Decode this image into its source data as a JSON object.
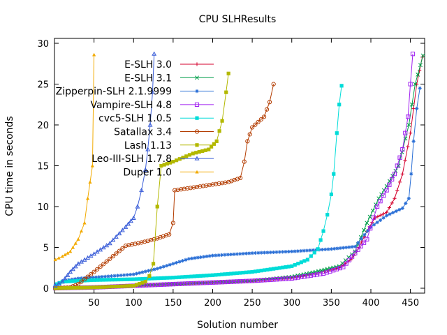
{
  "chart_data": {
    "type": "line",
    "title": "CPU SLHResults",
    "xlabel": "Solution number",
    "ylabel": "CPU time in seconds",
    "xlim": [
      0,
      468
    ],
    "ylim": [
      -0.6,
      30.6
    ],
    "x_ticks": [
      50,
      100,
      150,
      200,
      250,
      300,
      350,
      400,
      450
    ],
    "y_ticks": [
      0,
      5,
      10,
      15,
      20,
      25,
      30
    ],
    "grid": false,
    "legend_position": "top-left",
    "series": [
      {
        "name": "E-SLH 3.0",
        "color": "#d4002c",
        "marker": "plus",
        "points": [
          [
            1,
            0
          ],
          [
            50,
            0.1
          ],
          [
            100,
            0.3
          ],
          [
            150,
            0.5
          ],
          [
            200,
            0.7
          ],
          [
            250,
            0.9
          ],
          [
            300,
            1.3
          ],
          [
            330,
            1.8
          ],
          [
            360,
            2.5
          ],
          [
            375,
            3.5
          ],
          [
            385,
            5
          ],
          [
            395,
            7
          ],
          [
            405,
            8.6
          ],
          [
            420,
            9.3
          ],
          [
            430,
            11
          ],
          [
            440,
            14
          ],
          [
            450,
            19
          ],
          [
            458,
            25
          ],
          [
            465,
            28.3
          ]
        ]
      },
      {
        "name": "E-SLH 3.1",
        "color": "#009e49",
        "marker": "x",
        "points": [
          [
            1,
            0
          ],
          [
            50,
            0.1
          ],
          [
            100,
            0.3
          ],
          [
            150,
            0.5
          ],
          [
            200,
            0.7
          ],
          [
            250,
            0.9
          ],
          [
            300,
            1.4
          ],
          [
            330,
            2
          ],
          [
            360,
            2.7
          ],
          [
            380,
            4.5
          ],
          [
            395,
            8
          ],
          [
            410,
            11
          ],
          [
            420,
            12.5
          ],
          [
            435,
            15
          ],
          [
            448,
            20
          ],
          [
            456,
            25
          ],
          [
            466,
            28.5
          ]
        ]
      },
      {
        "name": "Zipperpin-SLH 2.1.9999",
        "color": "#2a6fd6",
        "marker": "star",
        "points": [
          [
            1,
            0.4
          ],
          [
            10,
            0.9
          ],
          [
            30,
            1.2
          ],
          [
            60,
            1.4
          ],
          [
            100,
            1.7
          ],
          [
            130,
            2.4
          ],
          [
            150,
            3
          ],
          [
            170,
            3.6
          ],
          [
            200,
            4
          ],
          [
            250,
            4.3
          ],
          [
            300,
            4.5
          ],
          [
            350,
            4.8
          ],
          [
            380,
            5.1
          ],
          [
            400,
            7.5
          ],
          [
            420,
            8.9
          ],
          [
            440,
            9.8
          ],
          [
            448,
            11
          ],
          [
            451,
            14
          ],
          [
            454,
            18
          ],
          [
            458,
            22
          ],
          [
            462,
            24.5
          ]
        ]
      },
      {
        "name": "Vampire-SLH 4.8",
        "color": "#a020f0",
        "marker": "square",
        "points": [
          [
            1,
            0
          ],
          [
            50,
            0.1
          ],
          [
            100,
            0.3
          ],
          [
            150,
            0.5
          ],
          [
            200,
            0.7
          ],
          [
            250,
            0.9
          ],
          [
            300,
            1.2
          ],
          [
            340,
            1.8
          ],
          [
            365,
            2.6
          ],
          [
            380,
            4.3
          ],
          [
            395,
            6
          ],
          [
            408,
            10
          ],
          [
            420,
            12
          ],
          [
            430,
            14
          ],
          [
            440,
            17
          ],
          [
            447,
            21
          ],
          [
            450,
            25
          ],
          [
            453,
            28.7
          ]
        ]
      },
      {
        "name": "cvc5-SLH 1.0.5",
        "color": "#00dcd8",
        "marker": "filled-square",
        "points": [
          [
            1,
            0.1
          ],
          [
            3,
            0.5
          ],
          [
            10,
            0.8
          ],
          [
            50,
            1.0
          ],
          [
            100,
            1.1
          ],
          [
            150,
            1.3
          ],
          [
            200,
            1.6
          ],
          [
            250,
            2
          ],
          [
            300,
            2.7
          ],
          [
            320,
            3.5
          ],
          [
            333,
            4.8
          ],
          [
            340,
            7
          ],
          [
            345,
            9
          ],
          [
            350,
            11.5
          ],
          [
            353,
            14
          ],
          [
            357,
            19
          ],
          [
            360,
            22.5
          ],
          [
            363,
            24.8
          ]
        ]
      },
      {
        "name": "Satallax 3.4",
        "color": "#b33c00",
        "marker": "circle",
        "points": [
          [
            1,
            0
          ],
          [
            20,
            0.1
          ],
          [
            30,
            0.5
          ],
          [
            50,
            2
          ],
          [
            70,
            3.6
          ],
          [
            90,
            5.2
          ],
          [
            110,
            5.6
          ],
          [
            130,
            6.1
          ],
          [
            145,
            6.6
          ],
          [
            150,
            8
          ],
          [
            152,
            12
          ],
          [
            180,
            12.4
          ],
          [
            220,
            13
          ],
          [
            235,
            13.5
          ],
          [
            240,
            15.5
          ],
          [
            244,
            18
          ],
          [
            250,
            19.7
          ],
          [
            265,
            21
          ],
          [
            272,
            22.8
          ],
          [
            277,
            25
          ]
        ]
      },
      {
        "name": "Lash 1.13",
        "color": "#b3b800",
        "marker": "filled-square",
        "points": [
          [
            1,
            0
          ],
          [
            50,
            0.1
          ],
          [
            100,
            0.3
          ],
          [
            115,
            0.8
          ],
          [
            120,
            1.5
          ],
          [
            125,
            3
          ],
          [
            130,
            10
          ],
          [
            135,
            15
          ],
          [
            150,
            15.5
          ],
          [
            175,
            16.5
          ],
          [
            195,
            17
          ],
          [
            205,
            18
          ],
          [
            212,
            20.5
          ],
          [
            217,
            24
          ],
          [
            220,
            26.3
          ]
        ]
      },
      {
        "name": "Leo-III-SLH 1.7.8",
        "color": "#3b5ed8",
        "marker": "triangle",
        "points": [
          [
            1,
            0.3
          ],
          [
            10,
            0.8
          ],
          [
            20,
            2
          ],
          [
            30,
            3
          ],
          [
            50,
            4.2
          ],
          [
            70,
            5.5
          ],
          [
            90,
            7.5
          ],
          [
            100,
            8.6
          ],
          [
            105,
            10
          ],
          [
            110,
            12
          ],
          [
            115,
            14.5
          ],
          [
            118,
            17
          ],
          [
            121,
            20
          ],
          [
            124,
            24
          ],
          [
            126,
            28.7
          ]
        ]
      },
      {
        "name": "Duper 1.0",
        "color": "#f2aa00",
        "marker": "filled-triangle",
        "points": [
          [
            1,
            3.5
          ],
          [
            10,
            3.9
          ],
          [
            20,
            4.5
          ],
          [
            30,
            6
          ],
          [
            38,
            8
          ],
          [
            42,
            11
          ],
          [
            45,
            13
          ],
          [
            48,
            15
          ],
          [
            50,
            28.6
          ]
        ]
      }
    ]
  }
}
